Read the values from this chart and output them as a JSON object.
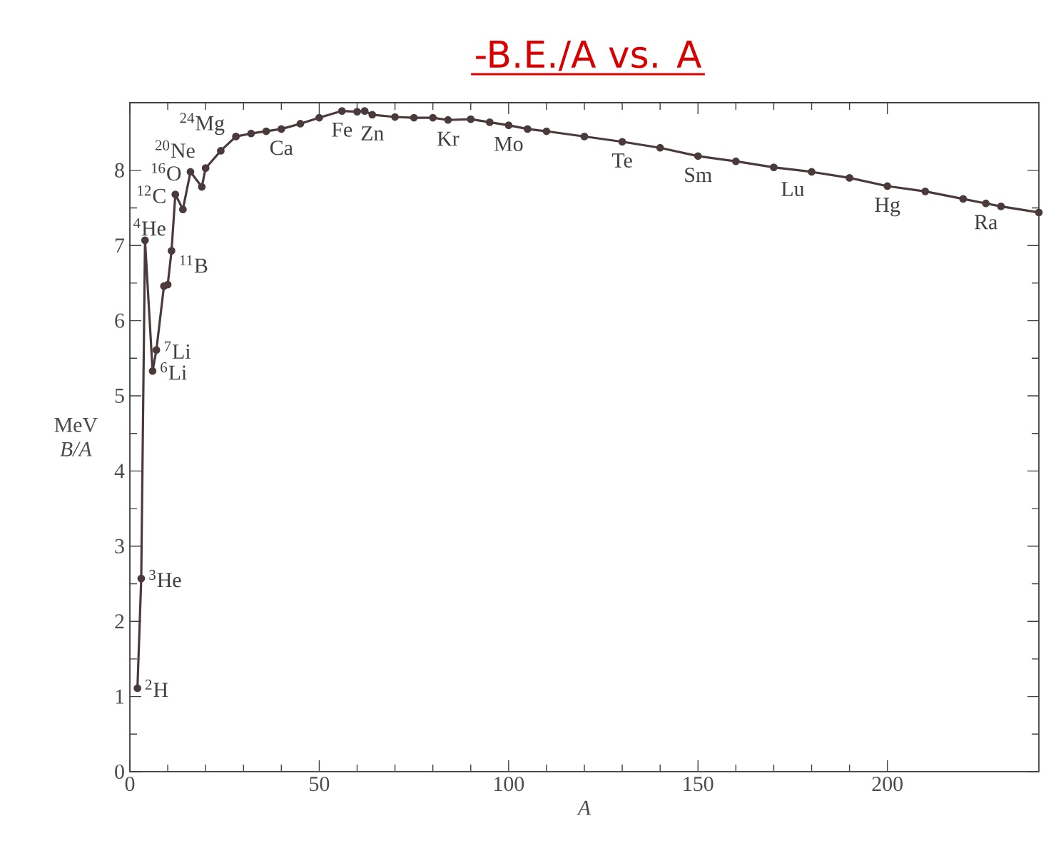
{
  "chart_data": {
    "type": "line",
    "title": "-B.E./A vs. A",
    "xlabel": "*A*",
    "ylabel": "MeV  *B/A*",
    "xlim": [
      0,
      240
    ],
    "ylim": [
      0,
      8.9
    ],
    "xticks": [
      0,
      50,
      100,
      150,
      200
    ],
    "yticks": [
      0,
      1,
      2,
      3,
      4,
      5,
      6,
      7,
      8
    ],
    "marker": "circle",
    "line_style": "solid",
    "series": [
      {
        "color": "#4a3a3c",
        "x": [
          2,
          3,
          4,
          6,
          7,
          9,
          10,
          11,
          12,
          14,
          16,
          19,
          20,
          24,
          28,
          32,
          36,
          40,
          45,
          50,
          56,
          60,
          62,
          64,
          70,
          75,
          80,
          84,
          90,
          95,
          100,
          105,
          110,
          120,
          130,
          140,
          150,
          160,
          170,
          180,
          190,
          200,
          210,
          220,
          226,
          230,
          240
        ],
        "values": [
          1.11,
          2.57,
          7.07,
          5.33,
          5.61,
          6.46,
          6.48,
          6.93,
          7.68,
          7.48,
          7.98,
          7.78,
          8.03,
          8.26,
          8.45,
          8.49,
          8.52,
          8.55,
          8.62,
          8.7,
          8.79,
          8.78,
          8.79,
          8.74,
          8.71,
          8.7,
          8.7,
          8.67,
          8.68,
          8.64,
          8.6,
          8.55,
          8.52,
          8.45,
          8.38,
          8.3,
          8.19,
          8.12,
          8.04,
          7.98,
          7.9,
          7.79,
          7.72,
          7.62,
          7.56,
          7.52,
          7.44
        ]
      }
    ],
    "annotations": [
      {
        "text": "$^{2}$H",
        "x": 2,
        "y": 1.11
      },
      {
        "text": "$^{3}$He",
        "x": 3,
        "y": 2.57
      },
      {
        "text": "$^{4}$He",
        "x": 4,
        "y": 7.07
      },
      {
        "text": "$^{6}$Li",
        "x": 6,
        "y": 5.33
      },
      {
        "text": "$^{7}$Li",
        "x": 7,
        "y": 5.61
      },
      {
        "text": "$^{11}$B",
        "x": 11,
        "y": 6.93
      },
      {
        "text": "$^{12}$C",
        "x": 12,
        "y": 7.68
      },
      {
        "text": "$^{16}$O",
        "x": 16,
        "y": 7.98
      },
      {
        "text": "$^{20}$Ne",
        "x": 20,
        "y": 8.03
      },
      {
        "text": "$^{24}$Mg",
        "x": 24,
        "y": 8.26
      },
      {
        "text": "Ca",
        "x": 40,
        "y": 8.55
      },
      {
        "text": "Fe",
        "x": 56,
        "y": 8.79
      },
      {
        "text": "Zn",
        "x": 64,
        "y": 8.74
      },
      {
        "text": "Kr",
        "x": 84,
        "y": 8.67
      },
      {
        "text": "Mo",
        "x": 100,
        "y": 8.6
      },
      {
        "text": "Te",
        "x": 130,
        "y": 8.38
      },
      {
        "text": "Sm",
        "x": 150,
        "y": 8.19
      },
      {
        "text": "Lu",
        "x": 175,
        "y": 8.0
      },
      {
        "text": "Hg",
        "x": 200,
        "y": 7.79
      },
      {
        "text": "Ra",
        "x": 226,
        "y": 7.56
      }
    ]
  }
}
